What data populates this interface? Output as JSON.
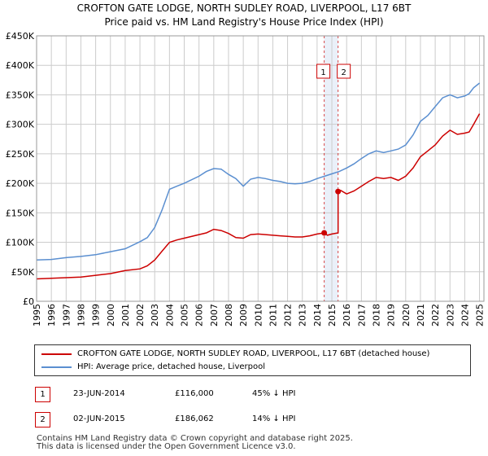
{
  "chart_data": {
    "type": "line",
    "title": "CROFTON GATE LODGE, NORTH SUDLEY ROAD, LIVERPOOL, L17 6BT",
    "subtitle": "Price paid vs. HM Land Registry's House Price Index (HPI)",
    "xlabel": "",
    "ylabel": "",
    "xlim": [
      1995,
      2025.3
    ],
    "ylim": [
      0,
      450000
    ],
    "y_ticks": [
      0,
      50000,
      100000,
      150000,
      200000,
      250000,
      300000,
      350000,
      400000,
      450000
    ],
    "y_tick_labels": [
      "£0",
      "£50K",
      "£100K",
      "£150K",
      "£200K",
      "£250K",
      "£300K",
      "£350K",
      "£400K",
      "£450K"
    ],
    "x_ticks": [
      "1995",
      "1996",
      "1997",
      "1998",
      "1999",
      "2000",
      "2001",
      "2002",
      "2003",
      "2004",
      "2005",
      "2006",
      "2007",
      "2008",
      "2009",
      "2010",
      "2011",
      "2012",
      "2013",
      "2014",
      "2015",
      "2016",
      "2017",
      "2018",
      "2019",
      "2020",
      "2021",
      "2022",
      "2023",
      "2024",
      "2025"
    ],
    "grid": true,
    "series": [
      {
        "name": "HPI: Average price, detached house, Liverpool",
        "color": "#5b8fd0",
        "points": [
          [
            1995,
            70000
          ],
          [
            1996,
            71000
          ],
          [
            1997,
            74000
          ],
          [
            1998,
            76000
          ],
          [
            1999,
            79000
          ],
          [
            2000,
            84000
          ],
          [
            2001,
            89000
          ],
          [
            2002,
            101000
          ],
          [
            2002.5,
            108000
          ],
          [
            2003,
            125000
          ],
          [
            2003.5,
            155000
          ],
          [
            2004,
            190000
          ],
          [
            2004.5,
            195000
          ],
          [
            2005,
            200000
          ],
          [
            2006,
            212000
          ],
          [
            2006.5,
            220000
          ],
          [
            2007,
            225000
          ],
          [
            2007.5,
            224000
          ],
          [
            2008,
            215000
          ],
          [
            2008.5,
            208000
          ],
          [
            2009,
            195000
          ],
          [
            2009.5,
            207000
          ],
          [
            2010,
            210000
          ],
          [
            2010.5,
            208000
          ],
          [
            2011,
            205000
          ],
          [
            2011.5,
            203000
          ],
          [
            2012,
            200000
          ],
          [
            2012.5,
            199000
          ],
          [
            2013,
            200000
          ],
          [
            2013.5,
            203000
          ],
          [
            2014,
            208000
          ],
          [
            2014.5,
            212000
          ],
          [
            2015,
            216000
          ],
          [
            2015.5,
            220000
          ],
          [
            2016,
            226000
          ],
          [
            2016.5,
            233000
          ],
          [
            2017,
            242000
          ],
          [
            2017.5,
            250000
          ],
          [
            2018,
            255000
          ],
          [
            2018.5,
            252000
          ],
          [
            2019,
            255000
          ],
          [
            2019.5,
            258000
          ],
          [
            2020,
            265000
          ],
          [
            2020.5,
            282000
          ],
          [
            2021,
            305000
          ],
          [
            2021.5,
            315000
          ],
          [
            2022,
            330000
          ],
          [
            2022.5,
            345000
          ],
          [
            2023,
            350000
          ],
          [
            2023.5,
            345000
          ],
          [
            2024,
            348000
          ],
          [
            2024.3,
            352000
          ],
          [
            2024.6,
            362000
          ],
          [
            2025,
            370000
          ]
        ]
      },
      {
        "name": "CROFTON GATE LODGE, NORTH SUDLEY ROAD, LIVERPOOL, L17 6BT (detached house)",
        "color": "#cc0000",
        "points": [
          [
            1995,
            38000
          ],
          [
            1996,
            39000
          ],
          [
            1997,
            40000
          ],
          [
            1998,
            41000
          ],
          [
            1999,
            44000
          ],
          [
            2000,
            47000
          ],
          [
            2001,
            52000
          ],
          [
            2002,
            55000
          ],
          [
            2002.5,
            60000
          ],
          [
            2003,
            70000
          ],
          [
            2003.5,
            85000
          ],
          [
            2004,
            100000
          ],
          [
            2004.5,
            104000
          ],
          [
            2005,
            107000
          ],
          [
            2006,
            113000
          ],
          [
            2006.5,
            116000
          ],
          [
            2007,
            122000
          ],
          [
            2007.5,
            120000
          ],
          [
            2008,
            115000
          ],
          [
            2008.5,
            108000
          ],
          [
            2009,
            107000
          ],
          [
            2009.5,
            113000
          ],
          [
            2010,
            114000
          ],
          [
            2010.5,
            113000
          ],
          [
            2011,
            112000
          ],
          [
            2011.5,
            111000
          ],
          [
            2012,
            110000
          ],
          [
            2012.5,
            109000
          ],
          [
            2013,
            109000
          ],
          [
            2013.5,
            111000
          ],
          [
            2014,
            114000
          ],
          [
            2014.48,
            116000
          ],
          [
            2014.7,
            112000
          ],
          [
            2015,
            114000
          ],
          [
            2015.42,
            116000
          ],
          [
            2015.42,
            186062
          ],
          [
            2015.6,
            188000
          ],
          [
            2016,
            182000
          ],
          [
            2016.5,
            187000
          ],
          [
            2017,
            195000
          ],
          [
            2017.5,
            203000
          ],
          [
            2018,
            210000
          ],
          [
            2018.5,
            208000
          ],
          [
            2019,
            210000
          ],
          [
            2019.5,
            205000
          ],
          [
            2020,
            212000
          ],
          [
            2020.5,
            226000
          ],
          [
            2021,
            245000
          ],
          [
            2021.5,
            255000
          ],
          [
            2022,
            265000
          ],
          [
            2022.5,
            280000
          ],
          [
            2023,
            290000
          ],
          [
            2023.5,
            283000
          ],
          [
            2024,
            285000
          ],
          [
            2024.3,
            287000
          ],
          [
            2024.6,
            300000
          ],
          [
            2025,
            318000
          ]
        ]
      }
    ],
    "sales": [
      {
        "label": "1",
        "x": 2014.48,
        "y": 116000
      },
      {
        "label": "2",
        "x": 2015.42,
        "y": 186062
      }
    ],
    "legend_position": "below"
  },
  "legend": {
    "property_label": "CROFTON GATE LODGE, NORTH SUDLEY ROAD, LIVERPOOL, L17 6BT (detached house)",
    "hpi_label": "HPI: Average price, detached house, Liverpool"
  },
  "transactions": [
    {
      "num": "1",
      "date": "23-JUN-2014",
      "price": "£116,000",
      "hpi": "45% ↓ HPI"
    },
    {
      "num": "2",
      "date": "02-JUN-2015",
      "price": "£186,062",
      "hpi": "14% ↓ HPI"
    }
  ],
  "footer": {
    "line1": "Contains HM Land Registry data © Crown copyright and database right 2025.",
    "line2": "This data is licensed under the Open Government Licence v3.0."
  }
}
